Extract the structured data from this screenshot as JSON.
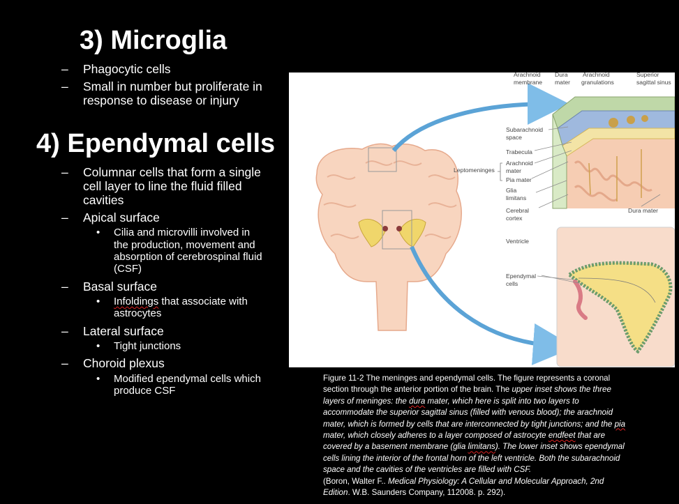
{
  "microglia": {
    "heading": "3) Microglia",
    "bullets": [
      "Phagocytic cells",
      "Small in number but proliferate in",
      "response to disease or injury"
    ]
  },
  "ependymal": {
    "heading": "4) Ependymal cells",
    "items": {
      "columnar_1": "Columnar cells that form a single",
      "columnar_2": "cell layer to line the fluid filled",
      "columnar_3": "cavities",
      "apical": "Apical surface",
      "apical_sub_1": "Cilia and microvilli involved in",
      "apical_sub_2": "the production, movement and",
      "apical_sub_3": "absorption of cerebrospinal fluid",
      "apical_sub_4": "(CSF)",
      "basal": "Basal surface",
      "basal_sub_1a": "Infoldings",
      "basal_sub_1b": " that associate with",
      "basal_sub_2": "astrocytes",
      "lateral": "Lateral surface",
      "lateral_sub": "Tight junctions",
      "choroid": "Choroid plexus",
      "choroid_sub_1": "Modified ependymal cells which",
      "choroid_sub_2": "produce CSF"
    }
  },
  "figure_labels": {
    "arachnoid_membrane_1": "Arachnoid",
    "arachnoid_membrane_2": "membrane",
    "dura_mater_top_1": "Dura",
    "dura_mater_top_2": "mater",
    "arachnoid_granulations_1": "Arachnoid",
    "arachnoid_granulations_2": "granulations",
    "superior_sinus_1": "Superior",
    "superior_sinus_2": "sagittal sinus",
    "subarachnoid_1": "Subarachnoid",
    "subarachnoid_2": "space",
    "trabecula": "Trabecula",
    "arachnoid_mater_1": "Arachnoid",
    "arachnoid_mater_2": "mater",
    "leptomeninges": "Leptomeninges",
    "pia_mater": "Pia mater",
    "glia_limitans_1": "Glia",
    "glia_limitans_2": "limitans",
    "cerebral_cortex_1": "Cerebral",
    "cerebral_cortex_2": "cortex",
    "dura_mater_right": "Dura mater",
    "ventricle": "Ventricle",
    "ependymal_cells_1": "Ependymal",
    "ependymal_cells_2": "cells"
  },
  "caption": {
    "l1": "Figure 11-2 The meninges and ependymal cells. The figure represents a coronal",
    "l2a": "section through the anterior portion of the brain. The ",
    "l2b": "upper inset shows the three",
    "l3": "layers of meninges: the ",
    "l3b": "dura",
    "l3c": " mater, which here is split into two layers to",
    "l4": "accommodate the superior sagittal sinus (filled with venous blood); the arachnoid",
    "l5": "mater, which is formed by cells that are interconnected by tight junctions; and the ",
    "l5b": "pia",
    "l6": "mater, which closely adheres to a layer composed of astrocyte ",
    "l6b": "endfeet",
    "l6c": " that are",
    "l7": "covered by a basement membrane (glia ",
    "l7b": "limitans",
    "l7c": "). The lower inset shows ependymal",
    "l8": "cells lining the interior of the frontal horn of the left ventricle. Both the subarachnoid",
    "l9": "space and the cavities of the ventricles are filled with CSF.",
    "c1a": "(Boron, Walter F.. ",
    "c1b": "Medical Physiology: A Cellular and Molecular Approach, 2nd",
    "c2a": "Edition",
    "c2b": ". W.B. Saunders Company, 112008. p. 292)."
  },
  "colors": {
    "background": "#000000",
    "text": "#ffffff",
    "arrow_blue": "#5ba3d6",
    "brain_fill": "#f6cdb3",
    "ventricle_yellow": "#f0d66b",
    "ependymal_pink": "#d97b85"
  }
}
